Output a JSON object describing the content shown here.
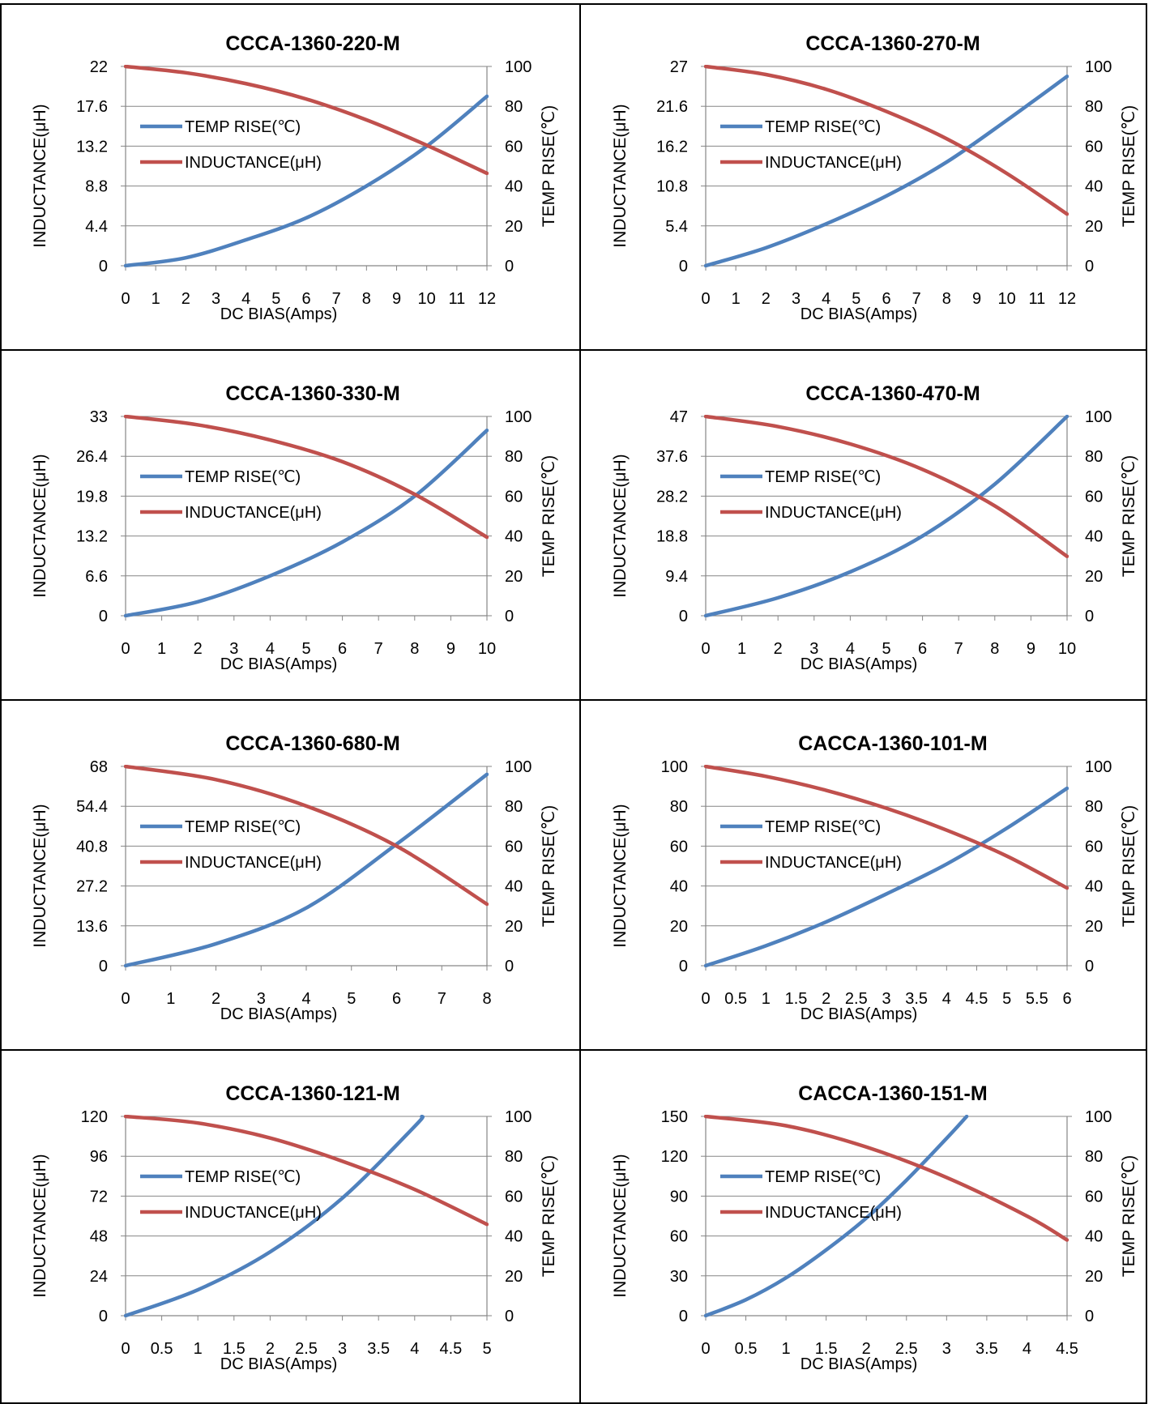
{
  "colors": {
    "temp_line": "#4F81BD",
    "inductance_line": "#C0504D",
    "gridline": "#868686",
    "axis": "#868686",
    "text": "#000000"
  },
  "legend": {
    "temp_label": "TEMP RISE(℃)",
    "inductance_label": "INDUCTANCE(μH)"
  },
  "axes": {
    "xlabel": "DC  BIAS(Amps)",
    "ylabel_left": "INDUCTANCE(μH)",
    "ylabel_right": "TEMP RISE(℃)"
  },
  "chart_data": [
    {
      "type": "line",
      "title": "CCCA-1360-220-M",
      "x_ticks": [
        0,
        1,
        2,
        3,
        4,
        5,
        6,
        7,
        8,
        9,
        10,
        11,
        12
      ],
      "xlim": [
        0,
        12
      ],
      "y_left_ticks": [
        "0",
        "4.4",
        "8.8",
        "13.2",
        "17.6",
        "22"
      ],
      "y_left_lim": [
        0,
        22
      ],
      "y_right_ticks": [
        "0",
        "20",
        "40",
        "60",
        "80",
        "100"
      ],
      "y_right_lim": [
        0,
        100
      ],
      "series": [
        {
          "name": "TEMP RISE(℃)",
          "axis": "right",
          "x": [
            0,
            2,
            4,
            6,
            8,
            10,
            12
          ],
          "y": [
            0,
            4,
            13,
            24,
            40,
            60,
            85
          ]
        },
        {
          "name": "INDUCTANCE(μH)",
          "axis": "left",
          "x": [
            0,
            2,
            4,
            6,
            8,
            10,
            12
          ],
          "y": [
            22,
            21.3,
            20.1,
            18.4,
            16.1,
            13.3,
            10.2
          ]
        }
      ]
    },
    {
      "type": "line",
      "title": "CCCA-1360-270-M",
      "x_ticks": [
        0,
        1,
        2,
        3,
        4,
        5,
        6,
        7,
        8,
        9,
        10,
        11,
        12
      ],
      "xlim": [
        0,
        12
      ],
      "y_left_ticks": [
        "0",
        "5.4",
        "10.8",
        "16.2",
        "21.6",
        "27"
      ],
      "y_left_lim": [
        0,
        27
      ],
      "y_right_ticks": [
        "0",
        "20",
        "40",
        "60",
        "80",
        "100"
      ],
      "y_right_lim": [
        0,
        100
      ],
      "series": [
        {
          "name": "TEMP RISE(℃)",
          "axis": "right",
          "x": [
            0,
            2,
            4,
            6,
            8,
            10,
            12
          ],
          "y": [
            0,
            9,
            21,
            35,
            52,
            73,
            95
          ]
        },
        {
          "name": "INDUCTANCE(μH)",
          "axis": "left",
          "x": [
            0,
            2,
            4,
            6,
            8,
            10,
            12
          ],
          "y": [
            27,
            25.9,
            23.9,
            20.9,
            17.2,
            12.5,
            7
          ]
        }
      ]
    },
    {
      "type": "line",
      "title": "CCCA-1360-330-M",
      "x_ticks": [
        0,
        1,
        2,
        3,
        4,
        5,
        6,
        7,
        8,
        9,
        10
      ],
      "xlim": [
        0,
        10
      ],
      "y_left_ticks": [
        "0",
        "6.6",
        "13.2",
        "19.8",
        "26.4",
        "33"
      ],
      "y_left_lim": [
        0,
        33
      ],
      "y_right_ticks": [
        "0",
        "20",
        "40",
        "60",
        "80",
        "100"
      ],
      "y_right_lim": [
        0,
        100
      ],
      "series": [
        {
          "name": "TEMP RISE(℃)",
          "axis": "right",
          "x": [
            0,
            2,
            4,
            6,
            8,
            10
          ],
          "y": [
            0,
            7,
            20,
            37,
            60,
            93
          ]
        },
        {
          "name": "INDUCTANCE(μH)",
          "axis": "left",
          "x": [
            0,
            2,
            4,
            6,
            8,
            10
          ],
          "y": [
            33,
            31.6,
            29.1,
            25.5,
            20.1,
            13
          ]
        }
      ]
    },
    {
      "type": "line",
      "title": "CCCA-1360-470-M",
      "x_ticks": [
        0,
        1,
        2,
        3,
        4,
        5,
        6,
        7,
        8,
        9,
        10
      ],
      "xlim": [
        0,
        10
      ],
      "y_left_ticks": [
        "0",
        "9.4",
        "18.8",
        "28.2",
        "37.6",
        "47"
      ],
      "y_left_lim": [
        0,
        47
      ],
      "y_right_ticks": [
        "0",
        "20",
        "40",
        "60",
        "80",
        "100"
      ],
      "y_right_lim": [
        0,
        100
      ],
      "series": [
        {
          "name": "TEMP RISE(℃)",
          "axis": "right",
          "x": [
            0,
            2,
            4,
            6,
            8,
            10
          ],
          "y": [
            0,
            9,
            22,
            40,
            66,
            100
          ]
        },
        {
          "name": "INDUCTANCE(μH)",
          "axis": "left",
          "x": [
            0,
            2,
            4,
            6,
            8,
            10
          ],
          "y": [
            47,
            44.6,
            40.5,
            34.5,
            25.9,
            14
          ]
        }
      ]
    },
    {
      "type": "line",
      "title": "CCCA-1360-680-M",
      "x_ticks": [
        0,
        1,
        2,
        3,
        4,
        5,
        6,
        7,
        8
      ],
      "xlim": [
        0,
        8
      ],
      "y_left_ticks": [
        "0",
        "13.6",
        "27.2",
        "40.8",
        "54.4",
        "68"
      ],
      "y_left_lim": [
        0,
        68
      ],
      "y_right_ticks": [
        "0",
        "20",
        "40",
        "60",
        "80",
        "100"
      ],
      "y_right_lim": [
        0,
        100
      ],
      "series": [
        {
          "name": "TEMP RISE(℃)",
          "axis": "right",
          "x": [
            0,
            2,
            4,
            6,
            8
          ],
          "y": [
            0,
            11,
            29,
            61,
            96
          ]
        },
        {
          "name": "INDUCTANCE(μH)",
          "axis": "left",
          "x": [
            0,
            2,
            4,
            6,
            8
          ],
          "y": [
            68,
            63.5,
            54.5,
            40.8,
            21
          ]
        }
      ]
    },
    {
      "type": "line",
      "title": "CACCA-1360-101-M",
      "x_ticks": [
        "0",
        "0.5",
        "1",
        "1.5",
        "2",
        "2.5",
        "3",
        "3.5",
        "4",
        "4.5",
        "5",
        "5.5",
        "6"
      ],
      "xlim": [
        0,
        6
      ],
      "y_left_ticks": [
        "0",
        "20",
        "40",
        "60",
        "80",
        "100"
      ],
      "y_left_lim": [
        0,
        100
      ],
      "y_right_ticks": [
        "0",
        "20",
        "40",
        "60",
        "80",
        "100"
      ],
      "y_right_lim": [
        0,
        100
      ],
      "series": [
        {
          "name": "TEMP RISE(℃)",
          "axis": "right",
          "x": [
            0,
            1,
            2,
            3,
            4,
            5,
            6
          ],
          "y": [
            0,
            10,
            22,
            36,
            51,
            69,
            89
          ]
        },
        {
          "name": "INDUCTANCE(μH)",
          "axis": "left",
          "x": [
            0,
            1,
            2,
            3,
            4,
            5,
            6
          ],
          "y": [
            100,
            95,
            88,
            79,
            68,
            55,
            39
          ]
        }
      ]
    },
    {
      "type": "line",
      "title": "CCCA-1360-121-M",
      "x_ticks": [
        "0",
        "0.5",
        "1",
        "1.5",
        "2",
        "2.5",
        "3",
        "3.5",
        "4",
        "4.5",
        "5"
      ],
      "xlim": [
        0,
        5
      ],
      "y_left_ticks": [
        "0",
        "24",
        "48",
        "72",
        "96",
        "120"
      ],
      "y_left_lim": [
        0,
        120
      ],
      "y_right_ticks": [
        "0",
        "20",
        "40",
        "60",
        "80",
        "100"
      ],
      "y_right_lim": [
        0,
        100
      ],
      "series": [
        {
          "name": "TEMP RISE(℃)",
          "axis": "right",
          "x": [
            0,
            1,
            2,
            3,
            4,
            4.1
          ],
          "y": [
            0,
            13,
            32,
            59,
            95,
            100
          ]
        },
        {
          "name": "INDUCTANCE(μH)",
          "axis": "left",
          "x": [
            0,
            1,
            2,
            3,
            4,
            5
          ],
          "y": [
            120,
            116,
            107,
            93,
            76,
            55
          ]
        }
      ]
    },
    {
      "type": "line",
      "title": "CACCA-1360-151-M",
      "x_ticks": [
        "0",
        "0.5",
        "1",
        "1.5",
        "2",
        "2.5",
        "3",
        "3.5",
        "4",
        "4.5"
      ],
      "xlim": [
        0,
        4.5
      ],
      "y_left_ticks": [
        "0",
        "30",
        "60",
        "90",
        "120",
        "150"
      ],
      "y_left_lim": [
        0,
        150
      ],
      "y_right_ticks": [
        "0",
        "20",
        "40",
        "60",
        "80",
        "100"
      ],
      "y_right_lim": [
        0,
        100
      ],
      "series": [
        {
          "name": "TEMP RISE(℃)",
          "axis": "right",
          "x": [
            0,
            0.5,
            1,
            1.5,
            2,
            2.5,
            3,
            3.25
          ],
          "y": [
            0,
            8,
            19,
            33,
            49,
            68,
            89,
            100
          ]
        },
        {
          "name": "INDUCTANCE(μH)",
          "axis": "left",
          "x": [
            0,
            1,
            2,
            3,
            4,
            4.5
          ],
          "y": [
            150,
            143,
            127,
            104,
            75,
            57
          ]
        }
      ]
    }
  ]
}
